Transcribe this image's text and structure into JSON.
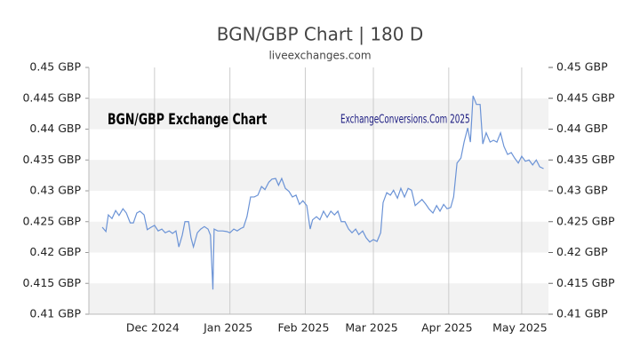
{
  "chart_data": {
    "type": "line",
    "title": "BGN/GBP Chart | 180 D",
    "subtitle": "liveexchanges.com",
    "annotations": [
      "BGN/GBP Exchange Chart",
      "ExchangeConversions.Com 2025"
    ],
    "x": [
      5.5,
      7,
      8,
      9.5,
      11,
      12.4,
      14,
      15.4,
      17,
      18.3,
      19.7,
      21,
      22.7,
      24,
      25.6,
      27,
      28.5,
      30,
      31.4,
      33,
      34.4,
      35.8,
      37,
      38.4,
      39.5,
      41,
      42,
      43,
      44.6,
      46,
      47.5,
      49,
      50,
      51,
      51.5,
      53,
      55,
      56.7,
      58,
      59.6,
      61,
      62.5,
      63.6,
      65,
      66.5,
      68,
      69.5,
      71,
      72.4,
      74,
      75.3,
      76.8,
      78,
      79.3,
      80.8,
      82.3,
      83.7,
      85.2,
      86.6,
      88,
      89.6,
      91,
      92,
      93.6,
      95,
      96.5,
      98,
      99.5,
      101,
      102.4,
      103.8,
      105.3,
      106.8,
      108.2,
      109.7,
      111,
      112.6,
      114,
      115.5,
      117,
      118.5,
      120,
      121,
      122.5,
      124,
      125.3,
      126.9,
      128.3,
      129.8,
      131.3,
      132.7,
      134.2,
      135.6,
      137,
      138.6,
      140,
      141.5,
      143,
      144.4,
      145.9,
      147.3,
      148.8,
      150,
      151.4,
      153,
      154.3,
      155.8,
      156.9,
      158,
      159.4,
      160.9,
      162,
      163.4,
      165,
      166.4,
      167.8,
      169.3,
      170.7,
      172.2,
      173.7,
      175.1,
      176.6,
      178,
      179.5,
      181,
      182.5,
      184,
      185.4,
      187
    ],
    "series": [
      {
        "name": "BGN/GBP",
        "color": "#6b93d6",
        "values": [
          0.4241,
          0.4234,
          0.4261,
          0.4255,
          0.4268,
          0.426,
          0.4271,
          0.4264,
          0.4248,
          0.4248,
          0.4264,
          0.4267,
          0.4261,
          0.4237,
          0.4241,
          0.4244,
          0.4235,
          0.4238,
          0.4232,
          0.4235,
          0.4231,
          0.4235,
          0.4209,
          0.4228,
          0.425,
          0.425,
          0.4224,
          0.4209,
          0.4232,
          0.4238,
          0.4242,
          0.4238,
          0.4228,
          0.414,
          0.4238,
          0.4235,
          0.4235,
          0.4234,
          0.4232,
          0.4238,
          0.4235,
          0.4239,
          0.4241,
          0.4258,
          0.429,
          0.429,
          0.4293,
          0.4307,
          0.4302,
          0.4314,
          0.4319,
          0.432,
          0.4309,
          0.432,
          0.4304,
          0.4299,
          0.429,
          0.4293,
          0.4278,
          0.4284,
          0.4276,
          0.4238,
          0.4253,
          0.4258,
          0.4253,
          0.4267,
          0.4257,
          0.4267,
          0.4261,
          0.4267,
          0.425,
          0.425,
          0.4238,
          0.4232,
          0.4238,
          0.4229,
          0.4235,
          0.4224,
          0.4217,
          0.4221,
          0.4218,
          0.4232,
          0.4281,
          0.4297,
          0.4293,
          0.4301,
          0.4288,
          0.4304,
          0.429,
          0.4304,
          0.4301,
          0.4276,
          0.4281,
          0.4286,
          0.4278,
          0.427,
          0.4264,
          0.4276,
          0.4267,
          0.4278,
          0.4271,
          0.4273,
          0.429,
          0.4345,
          0.4353,
          0.4379,
          0.4402,
          0.4379,
          0.4454,
          0.444,
          0.444,
          0.4376,
          0.4394,
          0.4379,
          0.4382,
          0.4379,
          0.4394,
          0.4372,
          0.4359,
          0.4362,
          0.4353,
          0.4345,
          0.4356,
          0.4348,
          0.435,
          0.4342,
          0.435,
          0.4339,
          0.4336
        ]
      }
    ],
    "xlim": [
      0,
      189
    ],
    "xticks": [
      {
        "value": 27,
        "label": "Dec 2024"
      },
      {
        "value": 58,
        "label": "Jan 2025"
      },
      {
        "value": 89,
        "label": "Feb 2025"
      },
      {
        "value": 117,
        "label": "Mar 2025"
      },
      {
        "value": 148,
        "label": "Apr 2025"
      },
      {
        "value": 178,
        "label": "May 2025"
      }
    ],
    "ylim": [
      0.41,
      0.45
    ],
    "yticks": [
      {
        "value": 0.41,
        "label": "0.41 GBP"
      },
      {
        "value": 0.415,
        "label": "0.415 GBP"
      },
      {
        "value": 0.42,
        "label": "0.42 GBP"
      },
      {
        "value": 0.425,
        "label": "0.425 GBP"
      },
      {
        "value": 0.43,
        "label": "0.43 GBP"
      },
      {
        "value": 0.435,
        "label": "0.435 GBP"
      },
      {
        "value": 0.44,
        "label": "0.44 GBP"
      },
      {
        "value": 0.445,
        "label": "0.445 GBP"
      },
      {
        "value": 0.45,
        "label": "0.45 GBP"
      }
    ],
    "y2lim": [
      0.41,
      0.45
    ],
    "y2ticks": [
      {
        "value": 0.41,
        "label": "0.41 GBP"
      },
      {
        "value": 0.415,
        "label": "0.415 GBP"
      },
      {
        "value": 0.42,
        "label": "0.42 GBP"
      },
      {
        "value": 0.425,
        "label": "0.425 GBP"
      },
      {
        "value": 0.43,
        "label": "0.43 GBP"
      },
      {
        "value": 0.435,
        "label": "0.435 GBP"
      },
      {
        "value": 0.44,
        "label": "0.44 GBP"
      },
      {
        "value": 0.445,
        "label": "0.445 GBP"
      },
      {
        "value": 0.45,
        "label": "0.45 GBP"
      }
    ],
    "grid": true
  }
}
